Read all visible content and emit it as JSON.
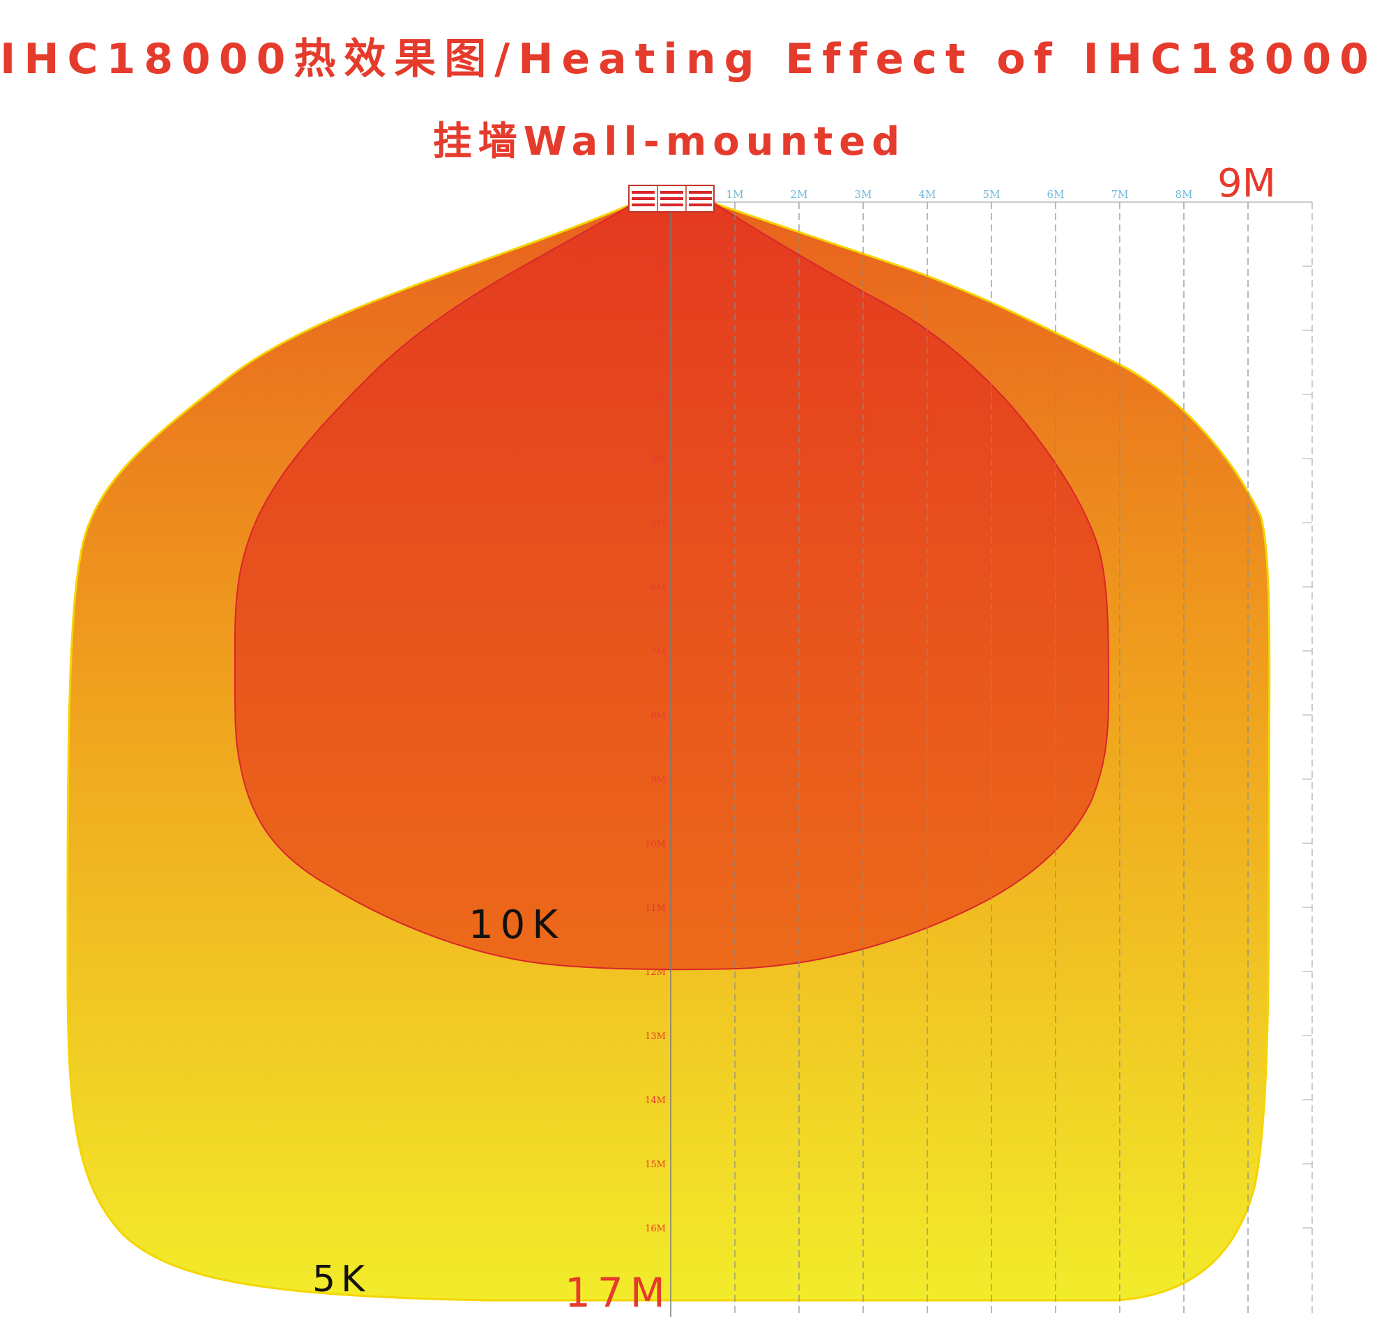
{
  "title": "IHC18000热效果图/Heating Effect of IHC18000",
  "subtitle": "挂墙Wall-mounted",
  "labels": {
    "width_max": "9M",
    "depth_max": "17M",
    "inner_zone": "10K",
    "outer_zone": "5K"
  },
  "x_ticks": [
    "1M",
    "2M",
    "3M",
    "4M",
    "5M",
    "6M",
    "7M",
    "8M"
  ],
  "y_ticks": [
    "1M",
    "2M",
    "3M",
    "4M",
    "5M",
    "6M",
    "7M",
    "8M",
    "9M",
    "10M",
    "11M",
    "12M",
    "13M",
    "14M",
    "15M",
    "16M"
  ],
  "colors": {
    "title": "#e53b2c",
    "outer_top": "#e8621e",
    "outer_bottom": "#f2ec2a",
    "inner_top": "#e43a20",
    "inner_bottom": "#ec6a1a",
    "tick_x": "#6fb8d8",
    "tick_y": "#e53b2c",
    "grid": "#8a8a8a"
  },
  "heater_icon": "heater-panel-icon"
}
